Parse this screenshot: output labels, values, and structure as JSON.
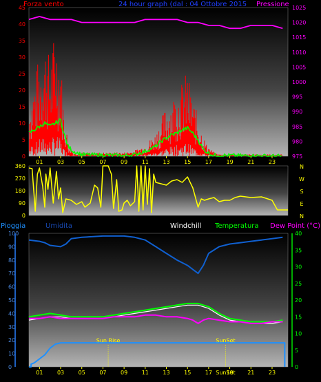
{
  "header": {
    "left_label": "Forza vento",
    "title": "24 hour graph (dal : 04 Ottobre 2015",
    "right_label": "Pressione"
  },
  "bottom_header": {
    "pioggia": "Pioggia",
    "umidita": "Umidita",
    "windchill": "Windchill",
    "temperatura": "Temperatura",
    "dewpoint": "Dew Point (°C)"
  },
  "colors": {
    "wind": "#ff0000",
    "gust": "#ff0000",
    "wind_avg": "#00ff00",
    "pressure": "#ff00ff",
    "direction": "#ffff00",
    "humidity": "#1060d0",
    "rain": "#1e90ff",
    "temperature": "#00ff00",
    "dewpoint": "#ff00ff",
    "windchill": "#ffffff",
    "axis_left": "#ff0000",
    "axis_right": "#ff00ff",
    "title": "#2040ff",
    "x_ticks": "#ffff00",
    "sun": "#ffff00"
  },
  "chart_data": [
    {
      "type": "line",
      "name": "wind-pressure",
      "x_ticks": [
        "01",
        "03",
        "05",
        "07",
        "09",
        "11",
        "13",
        "15",
        "17",
        "19",
        "21",
        "23"
      ],
      "x_range": [
        0,
        24.5
      ],
      "y_left": {
        "label": "Forza vento",
        "range": [
          0,
          45
        ],
        "ticks": [
          0,
          5,
          10,
          15,
          20,
          25,
          30,
          35,
          40,
          45
        ]
      },
      "y_right": {
        "label": "Pressione",
        "range": [
          975,
          1025
        ],
        "ticks": [
          975,
          980,
          985,
          990,
          995,
          1000,
          1005,
          1010,
          1015,
          1020,
          1025
        ]
      },
      "gust_profile": [
        [
          0,
          13
        ],
        [
          0.5,
          20
        ],
        [
          1,
          26
        ],
        [
          1.5,
          30
        ],
        [
          2,
          25
        ],
        [
          2.5,
          33
        ],
        [
          3,
          26
        ],
        [
          3.3,
          12
        ],
        [
          3.7,
          4
        ],
        [
          4.2,
          1
        ],
        [
          6,
          1
        ],
        [
          9,
          1
        ],
        [
          10,
          1.5
        ],
        [
          11,
          3
        ],
        [
          12,
          6
        ],
        [
          13,
          13
        ],
        [
          13.5,
          15
        ],
        [
          14,
          17
        ],
        [
          14.5,
          19
        ],
        [
          15,
          22
        ],
        [
          15.3,
          17
        ],
        [
          15.8,
          12
        ],
        [
          16.3,
          7
        ],
        [
          16.8,
          3
        ],
        [
          17.5,
          1
        ],
        [
          18,
          0.5
        ],
        [
          24,
          0.5
        ]
      ],
      "avg_profile": [
        [
          0,
          7
        ],
        [
          0.5,
          8
        ],
        [
          1,
          9
        ],
        [
          1.5,
          10
        ],
        [
          2,
          9
        ],
        [
          2.5,
          10
        ],
        [
          3,
          11
        ],
        [
          3.3,
          7
        ],
        [
          3.7,
          3
        ],
        [
          4.2,
          1.5
        ],
        [
          5,
          0.5
        ],
        [
          9,
          0.2
        ],
        [
          10,
          0.5
        ],
        [
          11,
          1.5
        ],
        [
          12,
          3
        ],
        [
          12.5,
          4.5
        ],
        [
          13,
          5.5
        ],
        [
          13.5,
          6.5
        ],
        [
          14,
          7
        ],
        [
          14.5,
          8
        ],
        [
          15,
          8.5
        ],
        [
          15.5,
          7
        ],
        [
          16,
          5
        ],
        [
          16.5,
          2
        ],
        [
          17,
          1
        ],
        [
          17.5,
          0.3
        ],
        [
          24,
          0
        ]
      ],
      "pressure": [
        [
          0,
          1021
        ],
        [
          1,
          1022
        ],
        [
          2,
          1021
        ],
        [
          3,
          1021
        ],
        [
          4,
          1021
        ],
        [
          5,
          1020
        ],
        [
          6,
          1020
        ],
        [
          7,
          1020
        ],
        [
          8,
          1020
        ],
        [
          9,
          1020
        ],
        [
          10,
          1020
        ],
        [
          11,
          1021
        ],
        [
          12,
          1021
        ],
        [
          13,
          1021
        ],
        [
          14,
          1021
        ],
        [
          15,
          1020
        ],
        [
          16,
          1020
        ],
        [
          17,
          1019
        ],
        [
          18,
          1019
        ],
        [
          19,
          1018
        ],
        [
          20,
          1018
        ],
        [
          21,
          1019
        ],
        [
          22,
          1019
        ],
        [
          23,
          1019
        ],
        [
          24,
          1018
        ]
      ]
    },
    {
      "type": "line",
      "name": "wind-direction",
      "y_left": {
        "range": [
          0,
          360
        ],
        "ticks": [
          0,
          90,
          180,
          270,
          360
        ]
      },
      "compass": [
        "N",
        "W",
        "S",
        "E",
        "N"
      ],
      "direction": [
        [
          0,
          345
        ],
        [
          0.3,
          340
        ],
        [
          0.6,
          30
        ],
        [
          0.8,
          300
        ],
        [
          1.0,
          345
        ],
        [
          1.3,
          210
        ],
        [
          1.5,
          60
        ],
        [
          1.6,
          300
        ],
        [
          1.8,
          190
        ],
        [
          2.0,
          345
        ],
        [
          2.3,
          90
        ],
        [
          2.6,
          320
        ],
        [
          2.8,
          120
        ],
        [
          3.0,
          200
        ],
        [
          3.2,
          20
        ],
        [
          3.5,
          120
        ],
        [
          4.0,
          110
        ],
        [
          4.5,
          80
        ],
        [
          5.0,
          100
        ],
        [
          5.3,
          60
        ],
        [
          5.8,
          90
        ],
        [
          6.2,
          220
        ],
        [
          6.5,
          200
        ],
        [
          6.8,
          60
        ],
        [
          7.0,
          360
        ],
        [
          7.5,
          360
        ],
        [
          7.8,
          300
        ],
        [
          8.0,
          50
        ],
        [
          8.3,
          260
        ],
        [
          8.5,
          30
        ],
        [
          8.8,
          40
        ],
        [
          9.0,
          90
        ],
        [
          9.3,
          110
        ],
        [
          9.6,
          70
        ],
        [
          10.0,
          100
        ],
        [
          10.2,
          360
        ],
        [
          10.4,
          30
        ],
        [
          10.6,
          360
        ],
        [
          10.8,
          40
        ],
        [
          11.0,
          360
        ],
        [
          11.2,
          80
        ],
        [
          11.4,
          340
        ],
        [
          11.6,
          20
        ],
        [
          11.8,
          300
        ],
        [
          12.0,
          240
        ],
        [
          12.5,
          230
        ],
        [
          13.0,
          220
        ],
        [
          13.5,
          250
        ],
        [
          14.0,
          260
        ],
        [
          14.5,
          240
        ],
        [
          15.0,
          280
        ],
        [
          15.5,
          200
        ],
        [
          16.0,
          60
        ],
        [
          16.3,
          120
        ],
        [
          16.6,
          110
        ],
        [
          17.0,
          120
        ],
        [
          17.5,
          130
        ],
        [
          18.0,
          100
        ],
        [
          18.5,
          110
        ],
        [
          19.0,
          110
        ],
        [
          19.5,
          130
        ],
        [
          20.0,
          140
        ],
        [
          21.0,
          130
        ],
        [
          22.0,
          135
        ],
        [
          23.0,
          110
        ],
        [
          23.5,
          40
        ],
        [
          24.5,
          40
        ]
      ]
    },
    {
      "type": "line",
      "name": "humidity-temperature",
      "y_left": {
        "label": "Umidita",
        "range": [
          0,
          100
        ],
        "ticks": [
          0,
          10,
          20,
          30,
          40,
          50,
          60,
          70,
          80,
          90,
          100
        ]
      },
      "y_right": {
        "label": "Temperatura",
        "range": [
          0,
          40
        ],
        "ticks": [
          0,
          5,
          10,
          15,
          20,
          25,
          30,
          35,
          40
        ]
      },
      "humidity": [
        [
          0,
          95
        ],
        [
          1,
          94
        ],
        [
          1.5,
          93
        ],
        [
          2,
          91
        ],
        [
          3,
          90
        ],
        [
          3.5,
          92
        ],
        [
          4,
          96
        ],
        [
          5,
          97
        ],
        [
          7,
          98
        ],
        [
          9,
          98
        ],
        [
          10,
          97
        ],
        [
          11,
          95
        ],
        [
          12,
          90
        ],
        [
          13,
          85
        ],
        [
          14,
          80
        ],
        [
          15,
          76
        ],
        [
          15.5,
          73
        ],
        [
          16,
          70
        ],
        [
          16.5,
          76
        ],
        [
          17,
          85
        ],
        [
          18,
          90
        ],
        [
          19,
          92
        ],
        [
          20,
          93
        ],
        [
          21,
          94
        ],
        [
          22,
          95
        ],
        [
          23,
          96
        ],
        [
          24,
          97
        ]
      ],
      "rain": [
        [
          0,
          0
        ],
        [
          0.2,
          0
        ],
        [
          0.2,
          2
        ],
        [
          0.5,
          3
        ],
        [
          1,
          6
        ],
        [
          1.5,
          9
        ],
        [
          2,
          14
        ],
        [
          2.5,
          17
        ],
        [
          3,
          18
        ],
        [
          3.5,
          18
        ],
        [
          4,
          18
        ],
        [
          5,
          18
        ],
        [
          24,
          18
        ],
        [
          24.2,
          18
        ],
        [
          24.2,
          0
        ]
      ],
      "temperature": [
        [
          0,
          15
        ],
        [
          1,
          15.5
        ],
        [
          2,
          16
        ],
        [
          3,
          15.5
        ],
        [
          4,
          15
        ],
        [
          5,
          15
        ],
        [
          6,
          15
        ],
        [
          7,
          15
        ],
        [
          8,
          15.5
        ],
        [
          9,
          16
        ],
        [
          10,
          16.5
        ],
        [
          11,
          17
        ],
        [
          12,
          17.5
        ],
        [
          13,
          18
        ],
        [
          14,
          18.5
        ],
        [
          15,
          19
        ],
        [
          16,
          19
        ],
        [
          17,
          18
        ],
        [
          18,
          16
        ],
        [
          19,
          14.5
        ],
        [
          20,
          14
        ],
        [
          21,
          13.5
        ],
        [
          22,
          13.5
        ],
        [
          23,
          13.5
        ],
        [
          24,
          14
        ]
      ],
      "dewpoint": [
        [
          0,
          14.5
        ],
        [
          1,
          14.5
        ],
        [
          2,
          15
        ],
        [
          3,
          14.5
        ],
        [
          4,
          14.5
        ],
        [
          5,
          14.5
        ],
        [
          6,
          14.5
        ],
        [
          7,
          14.5
        ],
        [
          8,
          15
        ],
        [
          9,
          15
        ],
        [
          10,
          15
        ],
        [
          11,
          15.5
        ],
        [
          12,
          15.5
        ],
        [
          13,
          15
        ],
        [
          14,
          15
        ],
        [
          15,
          14.5
        ],
        [
          15.5,
          14
        ],
        [
          16,
          13
        ],
        [
          16.5,
          14
        ],
        [
          17,
          14.5
        ],
        [
          18,
          14
        ],
        [
          19,
          13.5
        ],
        [
          20,
          13.5
        ],
        [
          21,
          13
        ],
        [
          22,
          13
        ],
        [
          23,
          13.5
        ],
        [
          24,
          13.5
        ]
      ],
      "windchill": [
        [
          0,
          14
        ],
        [
          1,
          14.5
        ],
        [
          2,
          15
        ],
        [
          3,
          15
        ],
        [
          4,
          14.5
        ],
        [
          5,
          14.5
        ],
        [
          6,
          14.5
        ],
        [
          7,
          14.5
        ],
        [
          8,
          15
        ],
        [
          9,
          15.5
        ],
        [
          10,
          16
        ],
        [
          11,
          16.5
        ],
        [
          12,
          17
        ],
        [
          13,
          17.5
        ],
        [
          14,
          18
        ],
        [
          15,
          18.5
        ],
        [
          16,
          18.5
        ],
        [
          17,
          17.5
        ],
        [
          18,
          15.5
        ],
        [
          19,
          14
        ],
        [
          20,
          13.5
        ],
        [
          21,
          13
        ],
        [
          22,
          13
        ],
        [
          23,
          13
        ],
        [
          24,
          13.5
        ]
      ],
      "sun_rise": {
        "label": "Sun Rise",
        "hour": 7.5
      },
      "sun_set": {
        "label": "SunSet",
        "hour": 18.6
      },
      "bottom_sunset_label": "SunSet"
    }
  ]
}
